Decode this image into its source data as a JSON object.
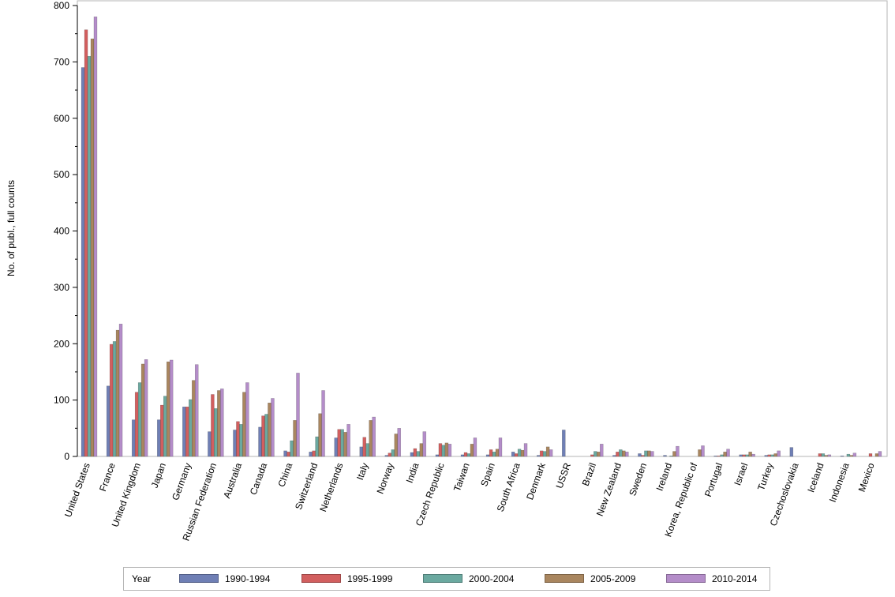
{
  "chart_data": {
    "type": "bar",
    "ylabel": "No. of publ., full counts",
    "xlabel": "",
    "ylim": [
      0,
      800
    ],
    "yticks": [
      0,
      100,
      200,
      300,
      400,
      500,
      600,
      700,
      800
    ],
    "categories": [
      "United States",
      "France",
      "United Kingdom",
      "Japan",
      "Germany",
      "Russian Federation",
      "Australia",
      "Canada",
      "China",
      "Switzerland",
      "Netherlands",
      "Italy",
      "Norway",
      "India",
      "Czech Republic",
      "Taiwan",
      "Spain",
      "South Africa",
      "Denmark",
      "USSR",
      "Brazil",
      "New Zealand",
      "Sweden",
      "Ireland",
      "Korea, Republic of",
      "Portugal",
      "Israel",
      "Turkey",
      "Czechoslovakia",
      "Iceland",
      "Indonesia",
      "Mexico"
    ],
    "legend": {
      "title": "Year",
      "position": "bottom"
    },
    "series": [
      {
        "name": "1990-1994",
        "color": "#6f7fb5",
        "values": [
          690,
          125,
          65,
          65,
          88,
          44,
          47,
          52,
          10,
          8,
          33,
          17,
          2,
          7,
          3,
          3,
          3,
          8,
          2,
          47,
          0,
          2,
          5,
          2,
          0,
          1,
          3,
          2,
          16,
          0,
          1,
          0
        ]
      },
      {
        "name": "1995-1999",
        "color": "#d25f5f",
        "values": [
          757,
          199,
          114,
          91,
          88,
          110,
          62,
          72,
          8,
          10,
          48,
          34,
          6,
          14,
          23,
          7,
          12,
          5,
          10,
          0,
          3,
          8,
          2,
          0,
          0,
          1,
          3,
          3,
          0,
          5,
          0,
          5
        ]
      },
      {
        "name": "2000-2004",
        "color": "#6ba9a0",
        "values": [
          710,
          204,
          131,
          107,
          101,
          85,
          57,
          75,
          28,
          35,
          48,
          23,
          12,
          9,
          20,
          5,
          8,
          13,
          9,
          0,
          9,
          12,
          10,
          1,
          0,
          3,
          3,
          3,
          0,
          5,
          4,
          0
        ]
      },
      {
        "name": "2005-2009",
        "color": "#a9865f",
        "values": [
          741,
          224,
          164,
          168,
          135,
          117,
          114,
          95,
          64,
          76,
          43,
          64,
          40,
          23,
          24,
          22,
          13,
          11,
          17,
          0,
          8,
          10,
          10,
          9,
          12,
          8,
          8,
          5,
          0,
          2,
          2,
          5
        ]
      },
      {
        "name": "2010-2014",
        "color": "#b48dc9",
        "values": [
          780,
          235,
          172,
          171,
          163,
          120,
          131,
          103,
          148,
          117,
          57,
          70,
          50,
          44,
          22,
          33,
          33,
          23,
          12,
          0,
          22,
          8,
          9,
          18,
          19,
          13,
          4,
          10,
          0,
          3,
          6,
          9
        ]
      }
    ]
  }
}
